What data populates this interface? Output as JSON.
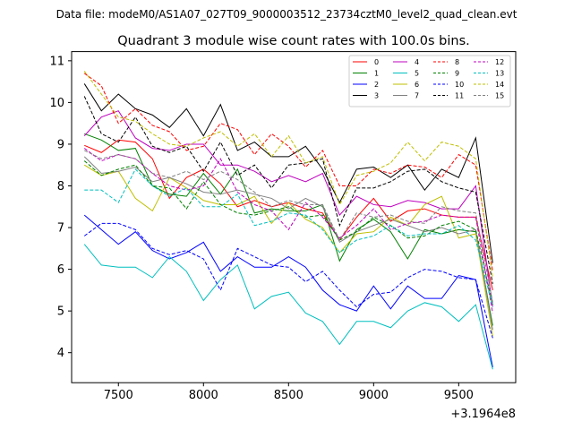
{
  "chart_data": {
    "type": "line",
    "suptitle": "Data file: modeM0/AS1A07_027T09_9000003512_23734cztM0_level2_quad_clean.evt",
    "title": "Quadrant 3 module wise count rates with 100.0s bins.",
    "xlabel": "",
    "ylabel": "",
    "x_offset_label": "+3.1964e8",
    "xlim": [
      7225,
      9835
    ],
    "ylim": [
      3.28,
      11.22
    ],
    "xticks": [
      7500,
      8000,
      8500,
      9000,
      9500
    ],
    "yticks": [
      4,
      5,
      6,
      7,
      8,
      9,
      10,
      11
    ],
    "grid": false,
    "legend_position": "top-right",
    "x": [
      7300,
      7400,
      7500,
      7600,
      7700,
      7800,
      7900,
      8000,
      8100,
      8200,
      8300,
      8400,
      8500,
      8600,
      8700,
      8800,
      8900,
      9000,
      9100,
      9200,
      9300,
      9400,
      9500,
      9600,
      9700
    ],
    "series": [
      {
        "name": "0",
        "color": "#ff0000",
        "dash": "solid",
        "values": [
          8.97,
          8.8,
          9.1,
          9.05,
          8.65,
          7.7,
          8.2,
          8.4,
          8.05,
          7.5,
          7.65,
          7.5,
          7.6,
          7.45,
          7.35,
          6.7,
          7.25,
          7.7,
          7.15,
          7.4,
          7.45,
          7.3,
          7.25,
          7.25,
          5.5
        ]
      },
      {
        "name": "1",
        "color": "#008000",
        "dash": "solid",
        "values": [
          9.25,
          9.1,
          8.85,
          8.9,
          8.0,
          7.8,
          7.75,
          8.3,
          7.8,
          8.4,
          7.35,
          7.45,
          7.4,
          7.4,
          7.55,
          6.2,
          6.95,
          7.2,
          6.9,
          6.25,
          6.95,
          6.85,
          6.95,
          6.9,
          4.65
        ]
      },
      {
        "name": "2",
        "color": "#0000ff",
        "dash": "solid",
        "values": [
          7.3,
          6.95,
          6.6,
          6.9,
          6.45,
          6.25,
          6.4,
          6.65,
          5.95,
          6.3,
          6.05,
          6.05,
          6.3,
          6.05,
          5.5,
          5.15,
          5.0,
          5.6,
          5.05,
          5.6,
          5.3,
          5.3,
          5.85,
          5.75,
          3.65
        ]
      },
      {
        "name": "3",
        "color": "#000000",
        "dash": "solid",
        "values": [
          10.45,
          9.8,
          10.2,
          9.85,
          9.7,
          9.4,
          9.85,
          9.2,
          9.95,
          8.85,
          9.05,
          8.7,
          8.7,
          8.95,
          8.4,
          7.6,
          8.4,
          8.45,
          8.2,
          8.5,
          7.9,
          8.4,
          8.2,
          9.15,
          6.15
        ]
      },
      {
        "name": "4",
        "color": "#bf00bf",
        "dash": "solid",
        "values": [
          9.2,
          9.65,
          9.8,
          9.15,
          8.9,
          8.85,
          9.0,
          9.0,
          8.5,
          8.5,
          8.35,
          8.1,
          8.25,
          8.1,
          8.3,
          7.3,
          7.75,
          7.55,
          7.5,
          7.65,
          7.6,
          7.45,
          7.45,
          8.0,
          5.1
        ]
      },
      {
        "name": "5",
        "color": "#00bfbf",
        "dash": "solid",
        "values": [
          6.6,
          6.1,
          6.05,
          6.05,
          5.8,
          6.3,
          5.95,
          5.25,
          5.75,
          6.1,
          5.05,
          5.35,
          5.45,
          4.95,
          4.75,
          4.2,
          4.75,
          4.75,
          4.6,
          5.0,
          5.2,
          5.1,
          4.75,
          5.15,
          3.6
        ]
      },
      {
        "name": "6",
        "color": "#bfbf00",
        "dash": "solid",
        "values": [
          8.5,
          8.25,
          8.35,
          7.7,
          7.4,
          8.2,
          7.95,
          7.65,
          7.55,
          7.55,
          7.75,
          7.1,
          7.6,
          7.2,
          7.0,
          6.4,
          6.85,
          6.9,
          7.25,
          7.05,
          7.55,
          7.75,
          6.75,
          6.85,
          4.4
        ]
      },
      {
        "name": "7",
        "color": "#808080",
        "dash": "solid",
        "values": [
          8.7,
          8.3,
          8.35,
          8.45,
          8.1,
          8.2,
          8.05,
          7.85,
          7.8,
          7.9,
          7.8,
          7.7,
          7.45,
          7.7,
          7.5,
          6.65,
          6.9,
          7.05,
          7.2,
          7.05,
          6.9,
          7.0,
          6.85,
          6.95,
          4.55
        ]
      },
      {
        "name": "8",
        "color": "#ff0000",
        "dash": "dashed",
        "values": [
          10.7,
          10.4,
          9.5,
          9.85,
          9.45,
          9.3,
          8.85,
          8.95,
          9.5,
          9.35,
          8.75,
          9.25,
          8.95,
          8.45,
          8.85,
          8.0,
          8.0,
          8.4,
          8.3,
          8.5,
          8.45,
          8.2,
          8.75,
          8.5,
          5.95
        ]
      },
      {
        "name": "9",
        "color": "#008000",
        "dash": "dashed",
        "values": [
          8.6,
          8.25,
          8.4,
          8.5,
          8.0,
          7.95,
          7.45,
          8.1,
          7.55,
          7.35,
          7.3,
          7.4,
          7.5,
          7.25,
          7.3,
          6.7,
          6.9,
          7.25,
          7.05,
          6.75,
          6.8,
          7.05,
          7.15,
          6.95,
          5.15
        ]
      },
      {
        "name": "10",
        "color": "#0000ff",
        "dash": "dashed",
        "values": [
          6.8,
          7.1,
          7.1,
          6.95,
          6.5,
          6.35,
          6.45,
          6.25,
          5.5,
          6.5,
          6.3,
          6.1,
          6.05,
          5.7,
          5.95,
          5.5,
          5.1,
          5.4,
          5.45,
          5.8,
          6.0,
          5.95,
          5.8,
          5.75,
          4.35
        ]
      },
      {
        "name": "11",
        "color": "#000000",
        "dash": "dashed",
        "values": [
          10.15,
          9.25,
          9.05,
          9.65,
          8.95,
          8.8,
          8.95,
          8.35,
          9.05,
          8.25,
          8.5,
          7.95,
          8.5,
          8.55,
          8.65,
          7.05,
          7.95,
          7.95,
          8.1,
          8.35,
          8.4,
          8.1,
          7.95,
          7.85,
          5.65
        ]
      },
      {
        "name": "12",
        "color": "#bf00bf",
        "dash": "dashed",
        "values": [
          8.9,
          8.6,
          8.75,
          8.65,
          8.3,
          8.0,
          7.9,
          8.0,
          8.65,
          7.85,
          7.55,
          7.4,
          6.95,
          7.6,
          7.25,
          6.75,
          7.05,
          7.45,
          6.95,
          7.1,
          7.15,
          7.3,
          7.25,
          7.25,
          4.95
        ]
      },
      {
        "name": "13",
        "color": "#00bfbf",
        "dash": "dashed",
        "values": [
          7.9,
          7.9,
          7.6,
          8.4,
          8.0,
          7.75,
          7.95,
          7.5,
          7.5,
          7.8,
          7.05,
          7.15,
          7.35,
          7.3,
          6.95,
          6.4,
          6.7,
          6.8,
          7.05,
          6.8,
          6.85,
          6.85,
          7.05,
          6.7,
          5.1
        ]
      },
      {
        "name": "14",
        "color": "#bfbf00",
        "dash": "dashed",
        "values": [
          10.75,
          10.2,
          9.65,
          9.55,
          9.25,
          9.0,
          8.95,
          9.15,
          9.3,
          8.95,
          9.25,
          8.7,
          9.2,
          8.55,
          8.7,
          7.55,
          8.25,
          8.35,
          8.55,
          9.05,
          8.6,
          9.05,
          8.95,
          8.65,
          5.8
        ]
      },
      {
        "name": "15",
        "color": "#808080",
        "dash": "dashed",
        "values": [
          8.85,
          8.65,
          8.75,
          8.65,
          8.3,
          8.2,
          8.35,
          8.15,
          8.35,
          8.15,
          7.85,
          7.5,
          7.65,
          7.55,
          7.55,
          6.7,
          7.35,
          7.25,
          7.3,
          7.15,
          7.1,
          7.5,
          7.4,
          7.35,
          5.2
        ]
      }
    ]
  }
}
